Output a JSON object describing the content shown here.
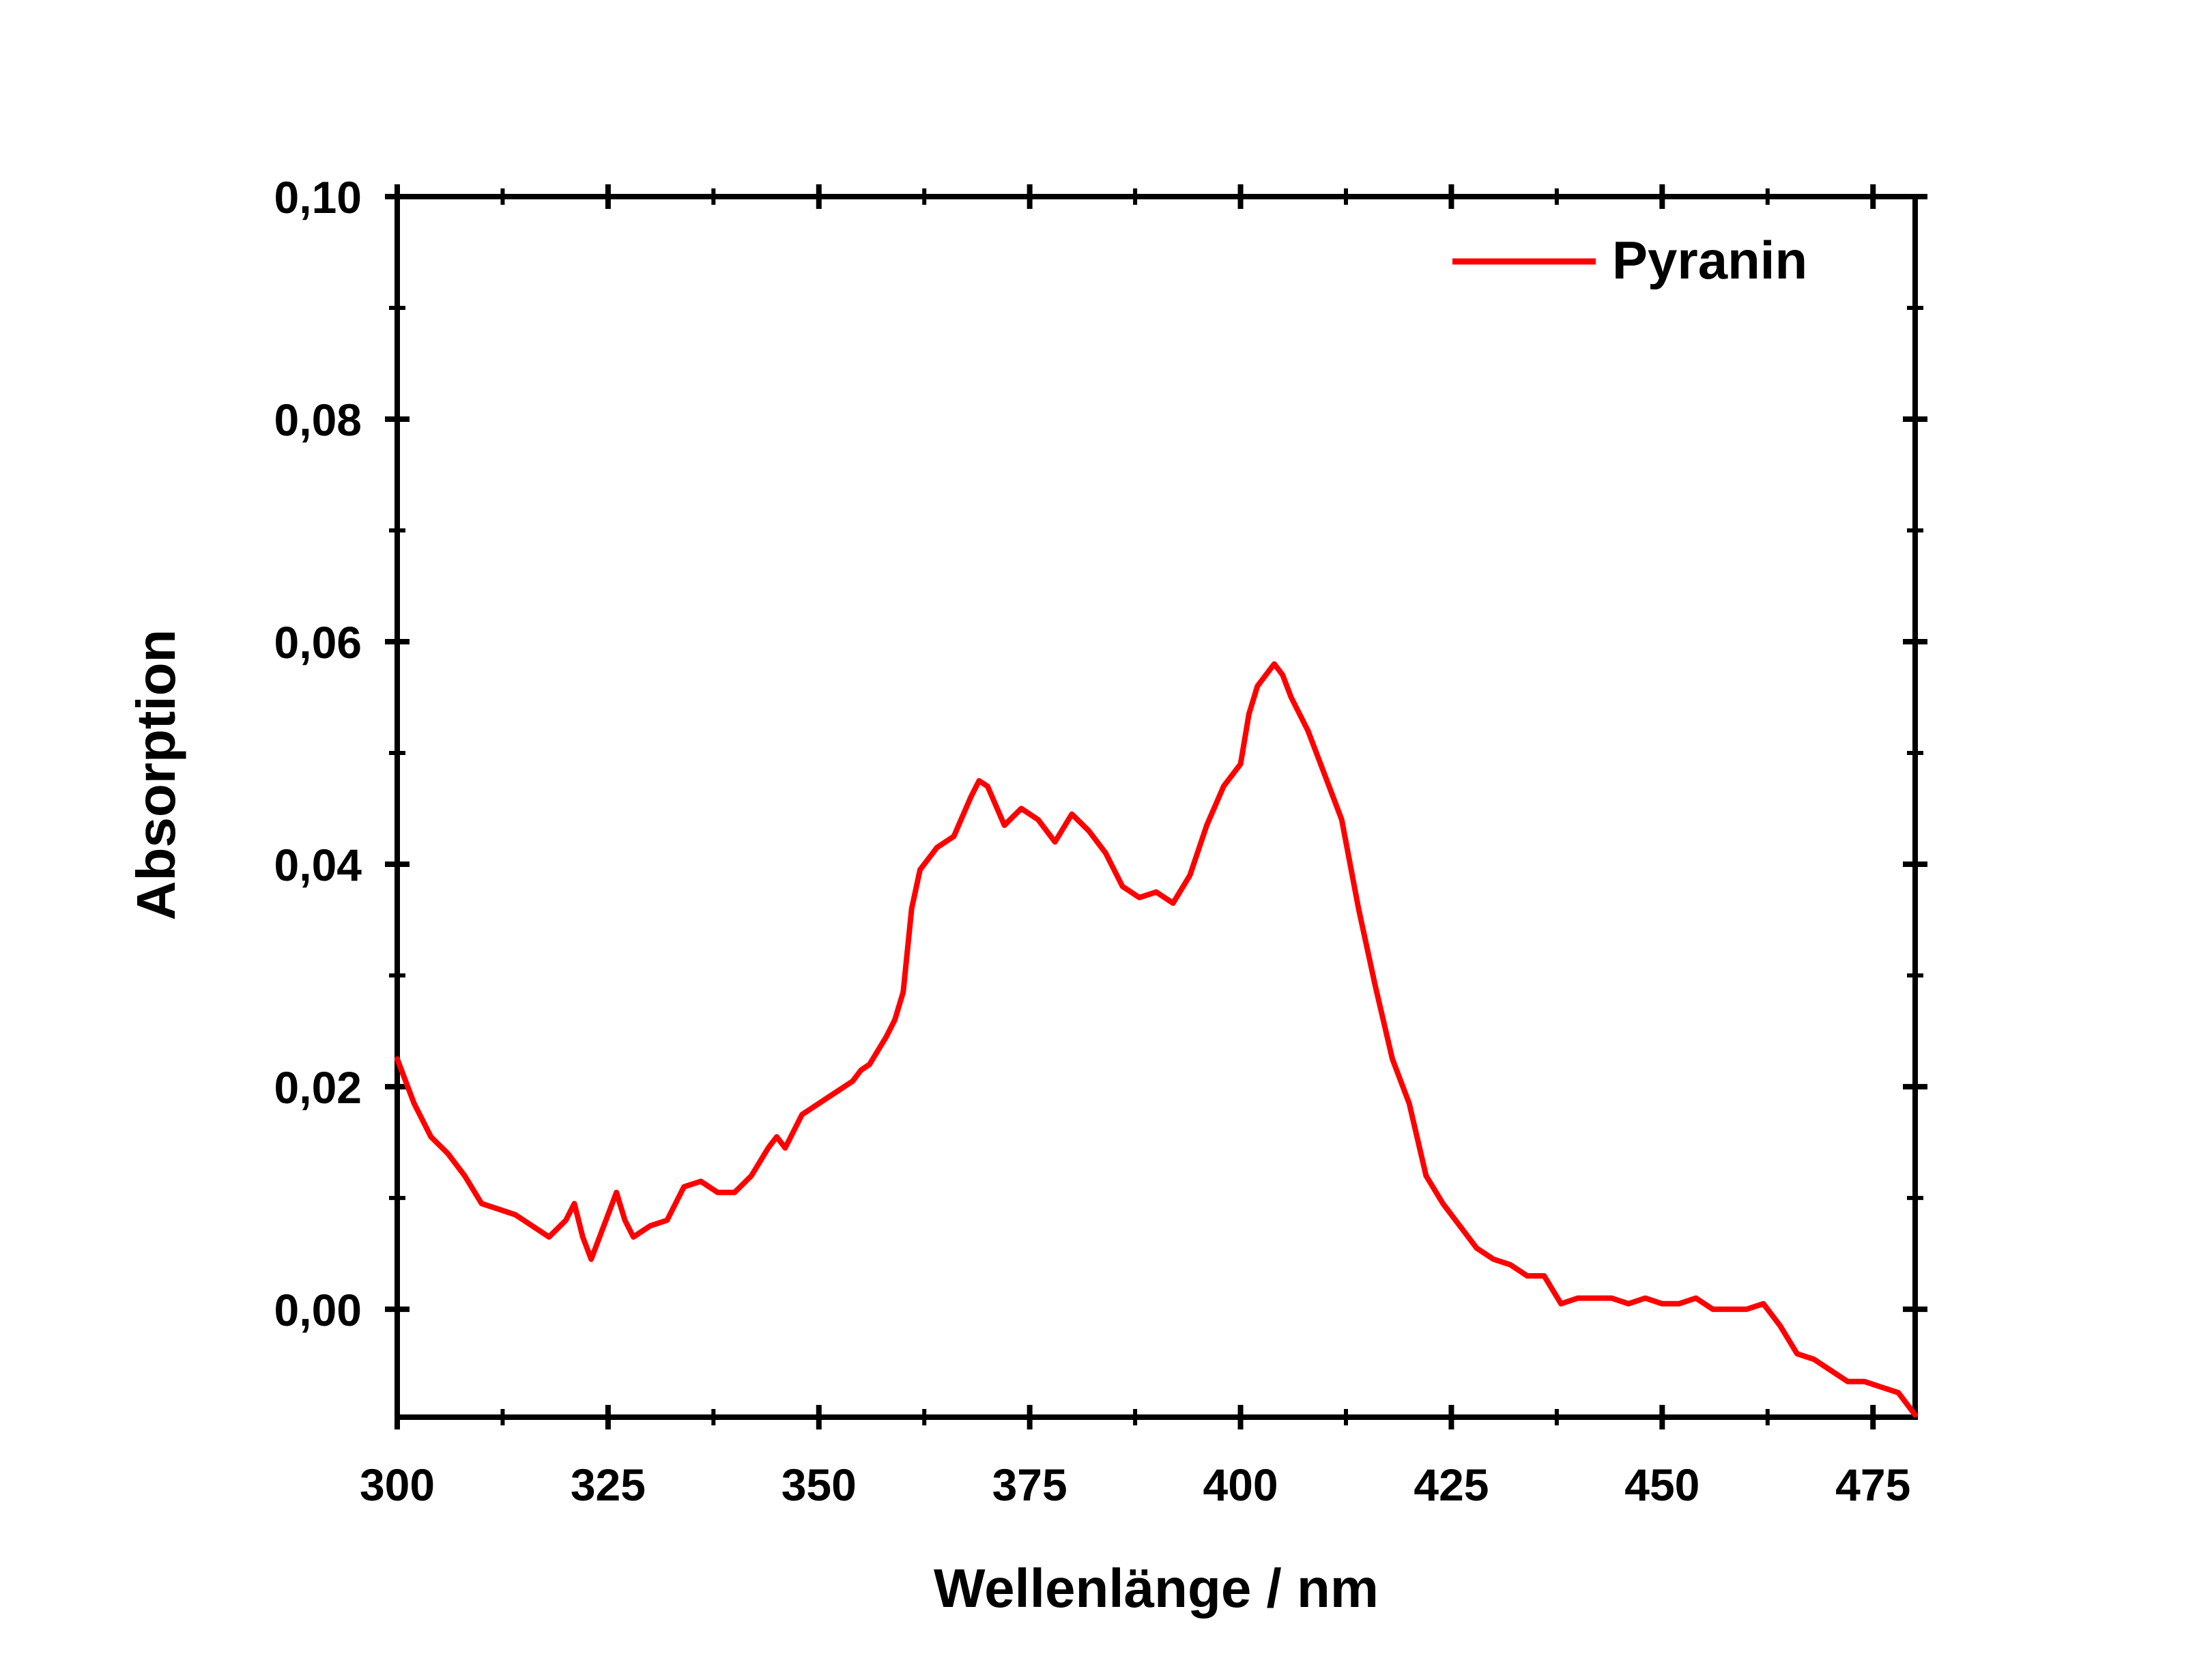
{
  "chart_data": {
    "type": "line",
    "title": "",
    "xlabel": "Wellenlänge / nm",
    "ylabel": "Absorption",
    "xlim": [
      300,
      480
    ],
    "ylim": [
      -0.0097,
      0.1
    ],
    "x_ticks": [
      300,
      325,
      350,
      375,
      400,
      425,
      450,
      475
    ],
    "x_tick_labels": [
      "300",
      "325",
      "350",
      "375",
      "400",
      "425",
      "450",
      "475"
    ],
    "y_ticks": [
      0.0,
      0.02,
      0.04,
      0.06,
      0.08,
      0.1
    ],
    "y_tick_labels": [
      "0,00",
      "0,02",
      "0,04",
      "0,06",
      "0,08",
      "0,10"
    ],
    "grid": false,
    "legend_position": "top-right",
    "series": [
      {
        "name": "Pyranin",
        "color": "#ff0000",
        "x": [
          300,
          302,
          304,
          306,
          308,
          310,
          312,
          314,
          316,
          318,
          320,
          321,
          322,
          323,
          324,
          326,
          327,
          328,
          330,
          332,
          334,
          336,
          338,
          340,
          342,
          344,
          345,
          346,
          348,
          350,
          352,
          354,
          355,
          356,
          358,
          359,
          360,
          361,
          362,
          364,
          366,
          368,
          369,
          370,
          372,
          374,
          376,
          378,
          380,
          382,
          384,
          386,
          388,
          390,
          392,
          394,
          396,
          398,
          400,
          401,
          402,
          403,
          404,
          405,
          406,
          408,
          410,
          412,
          414,
          416,
          418,
          420,
          422,
          424,
          426,
          428,
          430,
          432,
          434,
          436,
          438,
          440,
          442,
          444,
          446,
          448,
          450,
          452,
          454,
          456,
          458,
          460,
          462,
          464,
          466,
          468,
          470,
          472,
          474,
          476,
          478,
          480
        ],
        "y": [
          0.0225,
          0.0185,
          0.0155,
          0.014,
          0.012,
          0.0095,
          0.009,
          0.0085,
          0.0075,
          0.0065,
          0.008,
          0.0095,
          0.0065,
          0.0045,
          0.0065,
          0.0105,
          0.008,
          0.0065,
          0.0075,
          0.008,
          0.011,
          0.0115,
          0.0105,
          0.0105,
          0.012,
          0.0145,
          0.0155,
          0.0145,
          0.0175,
          0.0185,
          0.0195,
          0.0205,
          0.0215,
          0.022,
          0.0245,
          0.026,
          0.0285,
          0.036,
          0.0395,
          0.0415,
          0.0425,
          0.046,
          0.0475,
          0.047,
          0.0435,
          0.045,
          0.044,
          0.042,
          0.0445,
          0.043,
          0.041,
          0.038,
          0.037,
          0.0375,
          0.0365,
          0.039,
          0.0435,
          0.047,
          0.049,
          0.0535,
          0.056,
          0.057,
          0.058,
          0.057,
          0.055,
          0.052,
          0.048,
          0.044,
          0.036,
          0.029,
          0.0225,
          0.0185,
          0.012,
          0.0095,
          0.0075,
          0.0055,
          0.0045,
          0.004,
          0.003,
          0.003,
          0.0005,
          0.001,
          0.001,
          0.001,
          0.0005,
          0.001,
          0.0005,
          0.0005,
          0.001,
          0.0,
          0.0,
          0.0,
          0.0005,
          -0.0015,
          -0.004,
          -0.0045,
          -0.0055,
          -0.0065,
          -0.0065,
          -0.007,
          -0.0075,
          -0.0095
        ]
      }
    ]
  }
}
